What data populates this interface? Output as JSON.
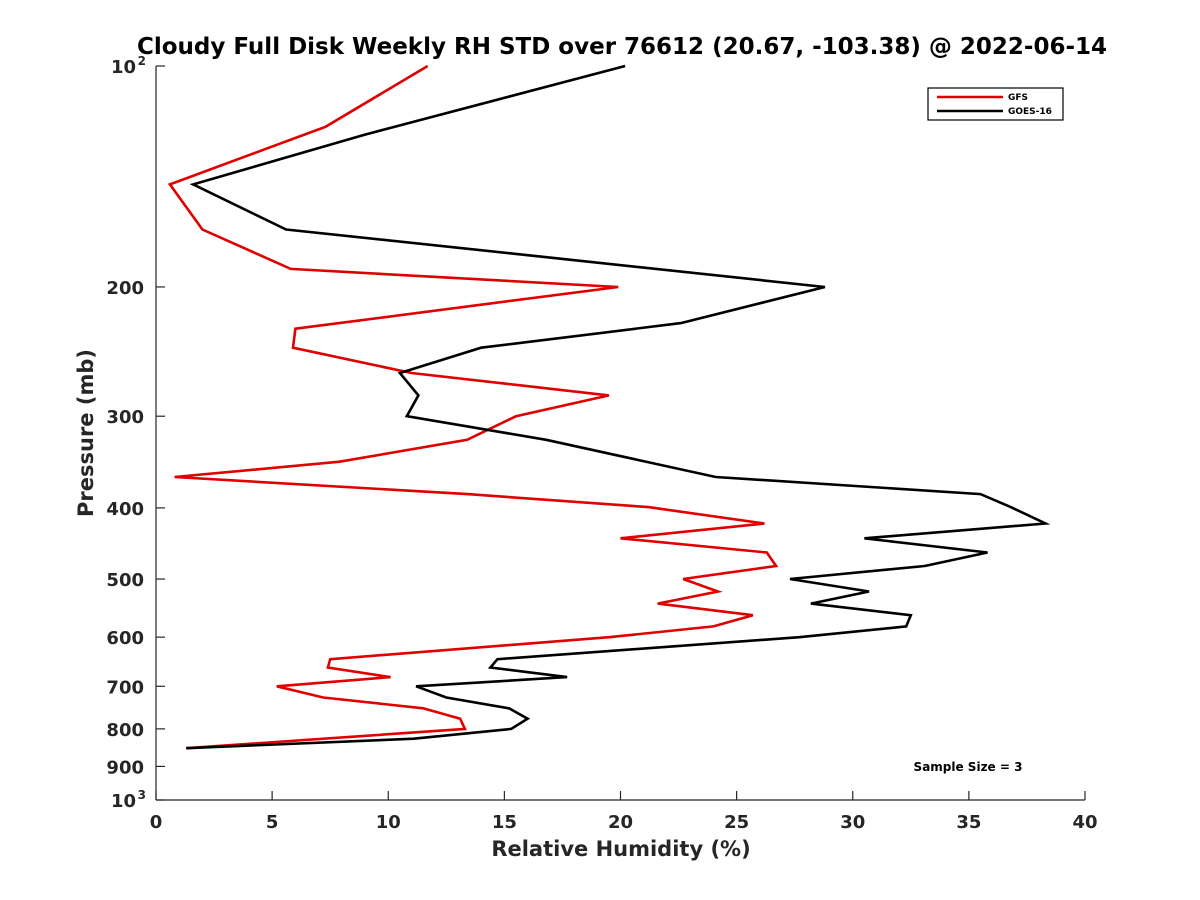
{
  "chart_data": {
    "type": "line",
    "title": "Cloudy Full Disk Weekly RH STD over 76612 (20.67, -103.38) @ 2022-06-14",
    "xlabel": "Relative Humidity (%)",
    "ylabel": "Pressure (mb)",
    "xlim": [
      0,
      40
    ],
    "ylim": [
      100,
      1000
    ],
    "yscale": "log",
    "yreversed": true,
    "grid": false,
    "legend_position": "top-right",
    "x_ticks": [
      "0",
      "5",
      "10",
      "15",
      "20",
      "25",
      "30",
      "35",
      "40"
    ],
    "x_tick_values": [
      0,
      5,
      10,
      15,
      20,
      25,
      30,
      35,
      40
    ],
    "y_ticks": [
      {
        "value": 100,
        "base": "10",
        "exp": "2"
      },
      {
        "value": 200,
        "base": "200",
        "exp": ""
      },
      {
        "value": 300,
        "base": "300",
        "exp": ""
      },
      {
        "value": 400,
        "base": "400",
        "exp": ""
      },
      {
        "value": 500,
        "base": "500",
        "exp": ""
      },
      {
        "value": 600,
        "base": "600",
        "exp": ""
      },
      {
        "value": 700,
        "base": "700",
        "exp": ""
      },
      {
        "value": 800,
        "base": "800",
        "exp": ""
      },
      {
        "value": 900,
        "base": "900",
        "exp": ""
      },
      {
        "value": 1000,
        "base": "10",
        "exp": "3"
      }
    ],
    "series": [
      {
        "name": "GFS",
        "color": "#e00000",
        "x": [
          11.7,
          7.3,
          0.6,
          2.0,
          5.8,
          19.9,
          6.0,
          5.9,
          11.0,
          19.5,
          15.5,
          13.4,
          7.9,
          0.8,
          13.4,
          21.2,
          26.2,
          20.0,
          26.3,
          26.7,
          22.7,
          24.2,
          21.6,
          25.7,
          24.0,
          19.5,
          7.5,
          7.4,
          10.1,
          5.2,
          7.2,
          11.5,
          13.1,
          13.3,
          1.3
        ],
        "y": [
          100,
          121,
          145,
          167,
          189,
          200,
          228,
          242,
          262,
          281,
          300,
          323,
          346,
          363,
          383,
          399,
          420,
          440,
          460,
          480,
          500,
          520,
          540,
          560,
          580,
          600,
          643,
          660,
          680,
          700,
          725,
          750,
          775,
          800,
          850
        ]
      },
      {
        "name": "GOES-16",
        "color": "#000000",
        "x": [
          20.2,
          9.0,
          1.6,
          5.6,
          15.3,
          28.8,
          22.6,
          14.0,
          10.5,
          11.3,
          10.8,
          16.8,
          24.1,
          35.5,
          36.8,
          38.3,
          30.5,
          35.8,
          33.1,
          27.3,
          30.7,
          28.2,
          32.5,
          32.3,
          27.7,
          14.7,
          14.4,
          17.7,
          11.2,
          12.5,
          15.2,
          16.0,
          15.3,
          11.1,
          1.3
        ],
        "y": [
          100,
          124,
          145,
          167,
          180,
          200,
          224,
          242,
          262,
          281,
          300,
          323,
          363,
          383,
          399,
          420,
          440,
          460,
          480,
          500,
          520,
          540,
          560,
          580,
          600,
          643,
          660,
          680,
          700,
          725,
          750,
          775,
          800,
          825,
          850
        ]
      }
    ],
    "annotation": "Sample Size = 3"
  }
}
